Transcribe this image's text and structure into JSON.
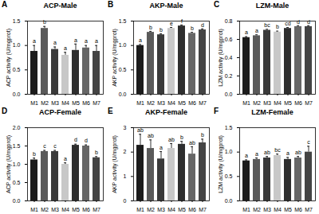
{
  "chart_data": [
    {
      "type": "bar",
      "panel": "A",
      "title": "ACP-Male",
      "y_label": "ACP activity (U/mgprot)",
      "categories": [
        "M1",
        "M2",
        "M3",
        "M4",
        "M5",
        "M6",
        "M7"
      ],
      "values": [
        0.88,
        1.35,
        0.92,
        0.8,
        0.9,
        0.95,
        0.88
      ],
      "errors": [
        0.12,
        0.04,
        0.05,
        0.06,
        0.13,
        0.05,
        0.12
      ],
      "letters": [
        "a",
        "b",
        "a",
        "a",
        "a",
        "a",
        "a"
      ],
      "colors": [
        "#1c1c1c",
        "#5a5a5a",
        "#3a3a3a",
        "#c8c8c8",
        "#2e2e2e",
        "#666666",
        "#444444"
      ],
      "ylim": [
        0,
        1.5
      ],
      "yticks": [
        {
          "value": 0,
          "label": "0.0"
        },
        0.5,
        {
          "value": 1,
          "label": "1.0"
        },
        1.5
      ]
    },
    {
      "type": "bar",
      "panel": "B",
      "title": "AKP-Male",
      "y_label": "AKP activity (U/mgprot)",
      "categories": [
        "M1",
        "M2",
        "M3",
        "M4",
        "M5",
        "M6",
        "M7"
      ],
      "values": [
        1.0,
        1.27,
        1.22,
        1.35,
        1.4,
        1.25,
        1.32
      ],
      "errors": [
        0.02,
        0.02,
        0.02,
        0.02,
        0.02,
        0.02,
        0.02
      ],
      "letters": [
        "a",
        "b",
        "b",
        "e",
        "f",
        "b",
        "d"
      ],
      "colors": [
        "#1c1c1c",
        "#5a5a5a",
        "#3a3a3a",
        "#c8c8c8",
        "#2e2e2e",
        "#666666",
        "#444444"
      ],
      "ylim": [
        0,
        1.5
      ],
      "yticks": [
        {
          "value": 0,
          "label": "0.0"
        },
        0.5,
        {
          "value": 1,
          "label": "1.0"
        },
        1.5
      ]
    },
    {
      "type": "bar",
      "panel": "C",
      "title": "LZM-Male",
      "y_label": "LZM activity (U/mgprot)",
      "categories": [
        "M1",
        "M2",
        "M3",
        "M4",
        "M5",
        "M6",
        "M7"
      ],
      "values": [
        0.62,
        0.64,
        0.7,
        0.68,
        0.72,
        0.74,
        0.74
      ],
      "errors": [
        0.01,
        0.01,
        0.01,
        0.01,
        0.01,
        0.01,
        0.01
      ],
      "letters": [
        "a",
        "a",
        "bc",
        "b",
        "cd",
        "d",
        "d"
      ],
      "colors": [
        "#1c1c1c",
        "#5a5a5a",
        "#3a3a3a",
        "#c8c8c8",
        "#2e2e2e",
        "#666666",
        "#444444"
      ],
      "ylim": [
        0,
        0.8
      ],
      "yticks": [
        {
          "value": 0,
          "label": "0.0"
        },
        0.2,
        0.4,
        0.6,
        0.8
      ]
    },
    {
      "type": "bar",
      "panel": "D",
      "title": "ACP-Female",
      "y_label": "ACP activity (U/mgprot)",
      "categories": [
        "M1",
        "M2",
        "M3",
        "M4",
        "M5",
        "M6",
        "M7"
      ],
      "values": [
        1.12,
        1.35,
        1.35,
        1.0,
        1.52,
        1.5,
        1.18
      ],
      "errors": [
        0.05,
        0.03,
        0.03,
        0.04,
        0.03,
        0.03,
        0.03
      ],
      "letters": [
        "b",
        "c",
        "c",
        "a",
        "d",
        "d",
        "b"
      ],
      "colors": [
        "#1c1c1c",
        "#5a5a5a",
        "#3a3a3a",
        "#c8c8c8",
        "#2e2e2e",
        "#666666",
        "#444444"
      ],
      "ylim": [
        0,
        2
      ],
      "yticks": [
        {
          "value": 0,
          "label": "0.0"
        },
        0.5,
        {
          "value": 1,
          "label": "1.0"
        },
        1.5,
        {
          "value": 2,
          "label": "2.0"
        }
      ]
    },
    {
      "type": "bar",
      "panel": "E",
      "title": "AKP-Female",
      "y_label": "AKP activity (U/mgprot)",
      "categories": [
        "M1",
        "M2",
        "M3",
        "M4",
        "M5",
        "M6",
        "M7"
      ],
      "values": [
        2.28,
        2.15,
        1.72,
        2.15,
        2.32,
        1.92,
        2.38
      ],
      "errors": [
        0.45,
        0.35,
        0.3,
        0.2,
        0.12,
        0.3,
        0.15
      ],
      "letters": [
        "ab",
        "ab",
        "a",
        "ab",
        "b",
        "ab",
        "b"
      ],
      "colors": [
        "#1c1c1c",
        "#5a5a5a",
        "#3a3a3a",
        "#c8c8c8",
        "#2e2e2e",
        "#666666",
        "#444444"
      ],
      "ylim": [
        0,
        3
      ],
      "yticks": [
        0,
        1,
        2,
        3
      ]
    },
    {
      "type": "bar",
      "panel": "F",
      "title": "LZM-Female",
      "y_label": "LZM activity (U/mgprot)",
      "categories": [
        "M1",
        "M2",
        "M3",
        "M4",
        "M5",
        "M6",
        "M7"
      ],
      "values": [
        0.82,
        0.85,
        0.88,
        0.93,
        0.85,
        0.88,
        1.0
      ],
      "errors": [
        0.02,
        0.03,
        0.03,
        0.03,
        0.04,
        0.03,
        0.12
      ],
      "letters": [
        "a",
        "a",
        "ab",
        "bc",
        "a",
        "ab",
        "c"
      ],
      "colors": [
        "#1c1c1c",
        "#5a5a5a",
        "#3a3a3a",
        "#c8c8c8",
        "#2e2e2e",
        "#666666",
        "#444444"
      ],
      "ylim": [
        0,
        1.5
      ],
      "yticks": [
        {
          "value": 0,
          "label": "0.0"
        },
        0.5,
        {
          "value": 1,
          "label": "1.0"
        },
        1.5
      ]
    }
  ]
}
